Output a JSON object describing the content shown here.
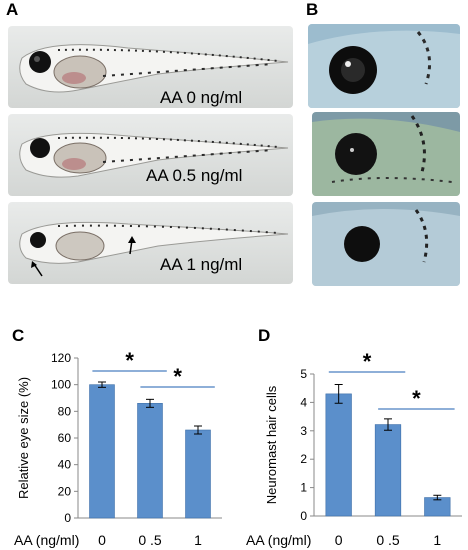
{
  "panels": {
    "a": "A",
    "b": "B",
    "c": "C",
    "d": "D"
  },
  "conditions": [
    "AA 0 ng/ml",
    "AA 0.5 ng/ml",
    "AA 1 ng/ml"
  ],
  "colors": {
    "bar": "#5b8fcb",
    "bar_edge": "#3e6fa8",
    "significance_line": "#4a7fc0"
  },
  "chart_data": [
    {
      "type": "bar",
      "title": "",
      "xlabel": "AA (ng/ml)",
      "ylabel": "Relative eye size (%)",
      "categories": [
        "0",
        "0 .5",
        "1"
      ],
      "values": [
        100,
        86,
        66
      ],
      "errors": [
        2,
        3,
        3
      ],
      "ylim": [
        0,
        120
      ],
      "yticks": [
        "0",
        "20",
        "40",
        "60",
        "80",
        "100",
        "120"
      ],
      "significance": [
        {
          "from": 0,
          "to": 1,
          "label": "*"
        },
        {
          "from": 1,
          "to": 2,
          "label": "*"
        }
      ],
      "grid": false
    },
    {
      "type": "bar",
      "title": "",
      "xlabel": "AA (ng/ml)",
      "ylabel": "Neuromast hair cells",
      "categories": [
        "0",
        "0 .5",
        "1"
      ],
      "values": [
        4.3,
        3.22,
        0.65
      ],
      "errors": [
        0.33,
        0.2,
        0.08
      ],
      "ylim": [
        0,
        5
      ],
      "yticks": [
        "0",
        "1",
        "2",
        "3",
        "4",
        "5"
      ],
      "significance": [
        {
          "from": 0,
          "to": 1,
          "label": "*"
        },
        {
          "from": 1,
          "to": 2,
          "label": "*"
        }
      ],
      "grid": false
    }
  ]
}
